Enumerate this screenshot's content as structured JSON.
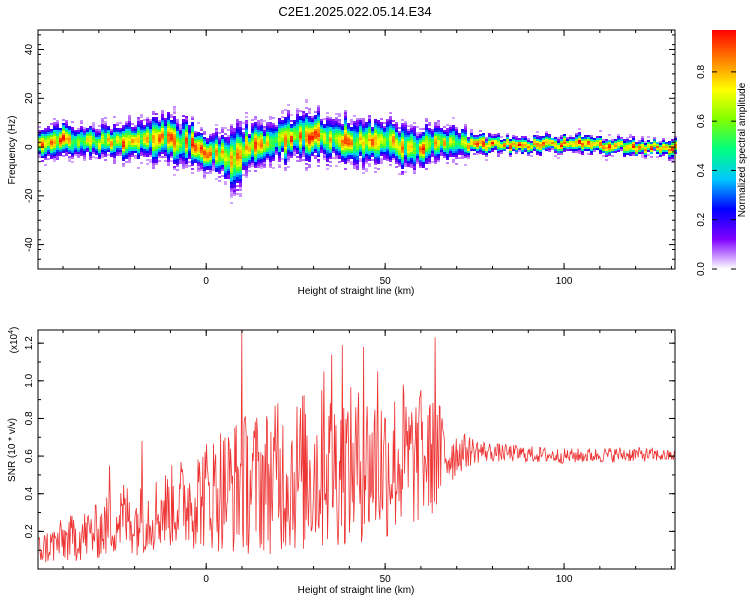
{
  "title": "C2E1.2025.022.05.14.E34",
  "chart_data": [
    {
      "type": "heatmap",
      "xlabel": "Height of straight line (km)",
      "ylabel": "Frequency (Hz)",
      "xlim": [
        -47,
        131
      ],
      "ylim": [
        -50,
        48
      ],
      "xticks": [
        0,
        50,
        100
      ],
      "yticks": [
        -40,
        -20,
        0,
        20,
        40
      ],
      "colorbar": {
        "label": "Normalized spectral amplitude",
        "range": [
          0,
          0.97
        ],
        "ticks": [
          "0.0",
          "0.2",
          "0.4",
          "0.6",
          "0.8"
        ],
        "tick_values": [
          0,
          0.2,
          0.4,
          0.6,
          0.8
        ],
        "colormap": [
          "#ffffff",
          "#8000ff",
          "#0000ff",
          "#00c8ff",
          "#00ff80",
          "#80ff00",
          "#ffff00",
          "#ff8000",
          "#ff0000"
        ]
      },
      "ridge": {
        "x": [
          -47,
          -40,
          -30,
          -20,
          -12,
          -5,
          0,
          5,
          8,
          12,
          20,
          30,
          40,
          50,
          57,
          65,
          75,
          85,
          100,
          110,
          120,
          131
        ],
        "center_hz": [
          1,
          3,
          2,
          2,
          4,
          1,
          -2,
          -3,
          -5,
          0,
          3,
          5,
          2,
          3,
          -1,
          2,
          1,
          1,
          1,
          1,
          0,
          0
        ],
        "spread_hz": [
          5,
          6,
          6,
          7,
          9,
          8,
          8,
          9,
          11,
          8,
          8,
          9,
          8,
          8,
          8,
          7,
          4,
          3,
          3,
          3,
          3,
          3
        ]
      }
    },
    {
      "type": "line",
      "xlabel": "Height of straight line (km)",
      "ylabel": "SNR (10 * v/v)",
      "multiplier_label": "(x10",
      "multiplier_exp": "4",
      "multiplier_close": ")",
      "xlim": [
        -47,
        131
      ],
      "ylim": [
        0.0,
        1.27
      ],
      "xticks": [
        0,
        50,
        100
      ],
      "yticks": [
        0.2,
        0.4,
        0.6,
        0.8,
        1.0,
        1.2
      ],
      "color": "#ee3333",
      "envelope": {
        "x": [
          -47,
          -40,
          -30,
          -23,
          -20,
          -10,
          0,
          10,
          20,
          30,
          40,
          50,
          60,
          65,
          70,
          75,
          80,
          100,
          120,
          131
        ],
        "mean": [
          0.1,
          0.15,
          0.2,
          0.28,
          0.25,
          0.33,
          0.4,
          0.45,
          0.48,
          0.52,
          0.55,
          0.56,
          0.58,
          0.6,
          0.62,
          0.63,
          0.62,
          0.6,
          0.61,
          0.6
        ],
        "amplitude": [
          0.08,
          0.12,
          0.15,
          0.2,
          0.18,
          0.22,
          0.3,
          0.38,
          0.4,
          0.45,
          0.42,
          0.42,
          0.35,
          0.3,
          0.12,
          0.07,
          0.05,
          0.04,
          0.04,
          0.03
        ]
      },
      "peaks": [
        {
          "x": -27,
          "y": 0.55
        },
        {
          "x": -18,
          "y": 0.68
        },
        {
          "x": 4,
          "y": 0.72
        },
        {
          "x": 10,
          "y": 1.27
        },
        {
          "x": 20,
          "y": 0.88
        },
        {
          "x": 27,
          "y": 0.92
        },
        {
          "x": 33,
          "y": 1.05
        },
        {
          "x": 35,
          "y": 1.14
        },
        {
          "x": 38,
          "y": 1.19
        },
        {
          "x": 44,
          "y": 1.18
        },
        {
          "x": 48,
          "y": 1.05
        },
        {
          "x": 55,
          "y": 0.98
        },
        {
          "x": 60,
          "y": 0.95
        },
        {
          "x": 64,
          "y": 1.23
        }
      ]
    }
  ]
}
